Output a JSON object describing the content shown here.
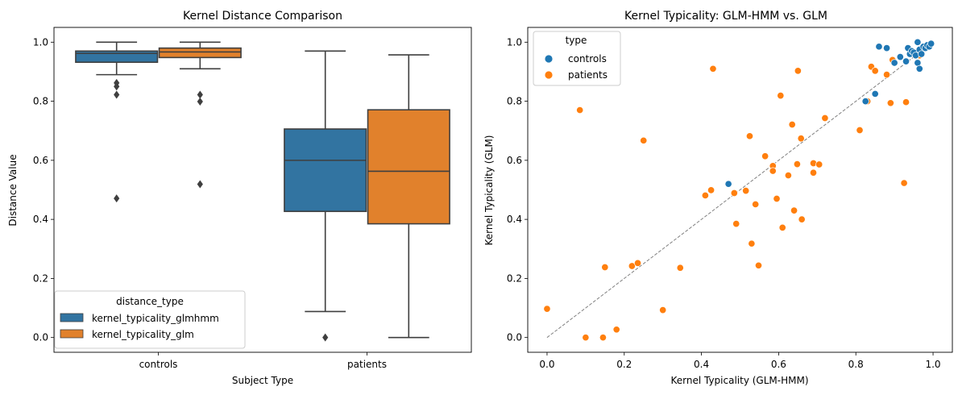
{
  "chart_data": [
    {
      "type": "box",
      "title": "Kernel Distance Comparison",
      "xlabel": "Subject Type",
      "ylabel": "Distance Value",
      "ylim": [
        -0.05,
        1.05
      ],
      "yticks": [
        "0.0",
        "0.2",
        "0.4",
        "0.6",
        "0.8",
        "1.0"
      ],
      "categories": [
        "controls",
        "patients"
      ],
      "legend": {
        "title": "distance_type",
        "position": "lower-left"
      },
      "series": [
        {
          "name": "kernel_typicality_glmhmm",
          "color": "#3274a1",
          "boxes": [
            {
              "q1": 0.932,
              "median": 0.962,
              "q3": 0.97,
              "whisker_low": 0.89,
              "whisker_high": 1.0,
              "outliers": [
                0.862,
                0.85,
                0.822,
                0.471
              ]
            },
            {
              "q1": 0.427,
              "median": 0.6,
              "q3": 0.706,
              "whisker_low": 0.088,
              "whisker_high": 0.97,
              "outliers": [
                0.0
              ]
            }
          ]
        },
        {
          "name": "kernel_typicality_glm",
          "color": "#e1812c",
          "boxes": [
            {
              "q1": 0.948,
              "median": 0.967,
              "q3": 0.98,
              "whisker_low": 0.91,
              "whisker_high": 1.0,
              "outliers": [
                0.822,
                0.799,
                0.519
              ]
            },
            {
              "q1": 0.385,
              "median": 0.563,
              "q3": 0.771,
              "whisker_low": 0.0,
              "whisker_high": 0.957,
              "outliers": []
            }
          ]
        }
      ]
    },
    {
      "type": "scatter",
      "title": "Kernel Typicality: GLM-HMM vs. GLM",
      "xlabel": "Kernel Typicality (GLM-HMM)",
      "ylabel": "Kernel Typicality (GLM)",
      "xlim": [
        -0.05,
        1.05
      ],
      "ylim": [
        -0.05,
        1.05
      ],
      "xticks": [
        "0.0",
        "0.2",
        "0.4",
        "0.6",
        "0.8",
        "1.0"
      ],
      "yticks": [
        "0.0",
        "0.2",
        "0.4",
        "0.6",
        "0.8",
        "1.0"
      ],
      "legend": {
        "title": "type",
        "position": "top-left"
      },
      "reference_line": {
        "style": "dashed",
        "color": "#808080",
        "from": [
          0,
          0
        ],
        "to": [
          1,
          1
        ]
      },
      "series": [
        {
          "name": "controls",
          "color": "#1f77b4",
          "points": [
            [
              0.47,
              0.52
            ],
            [
              0.85,
              0.825
            ],
            [
              0.825,
              0.8
            ],
            [
              0.86,
              0.985
            ],
            [
              0.88,
              0.98
            ],
            [
              0.9,
              0.93
            ],
            [
              0.915,
              0.95
            ],
            [
              0.93,
              0.935
            ],
            [
              0.935,
              0.98
            ],
            [
              0.94,
              0.96
            ],
            [
              0.945,
              0.97
            ],
            [
              0.95,
              0.965
            ],
            [
              0.955,
              0.955
            ],
            [
              0.96,
              1.0
            ],
            [
              0.96,
              0.93
            ],
            [
              0.965,
              0.91
            ],
            [
              0.965,
              0.975
            ],
            [
              0.97,
              0.96
            ],
            [
              0.975,
              0.985
            ],
            [
              0.98,
              0.98
            ],
            [
              0.985,
              0.99
            ],
            [
              0.99,
              0.985
            ],
            [
              0.995,
              0.995
            ]
          ]
        },
        {
          "name": "patients",
          "color": "#ff7f0e",
          "points": [
            [
              0.0,
              0.097
            ],
            [
              0.085,
              0.77
            ],
            [
              0.1,
              0.0
            ],
            [
              0.145,
              0.0
            ],
            [
              0.15,
              0.238
            ],
            [
              0.18,
              0.027
            ],
            [
              0.22,
              0.242
            ],
            [
              0.235,
              0.252
            ],
            [
              0.25,
              0.667
            ],
            [
              0.3,
              0.093
            ],
            [
              0.345,
              0.236
            ],
            [
              0.41,
              0.481
            ],
            [
              0.425,
              0.499
            ],
            [
              0.43,
              0.91
            ],
            [
              0.485,
              0.489
            ],
            [
              0.49,
              0.385
            ],
            [
              0.515,
              0.497
            ],
            [
              0.525,
              0.682
            ],
            [
              0.53,
              0.318
            ],
            [
              0.54,
              0.451
            ],
            [
              0.548,
              0.244
            ],
            [
              0.565,
              0.614
            ],
            [
              0.585,
              0.581
            ],
            [
              0.585,
              0.564
            ],
            [
              0.595,
              0.47
            ],
            [
              0.605,
              0.819
            ],
            [
              0.61,
              0.372
            ],
            [
              0.625,
              0.549
            ],
            [
              0.635,
              0.721
            ],
            [
              0.64,
              0.43
            ],
            [
              0.648,
              0.587
            ],
            [
              0.65,
              0.903
            ],
            [
              0.658,
              0.674
            ],
            [
              0.66,
              0.4
            ],
            [
              0.69,
              0.558
            ],
            [
              0.69,
              0.59
            ],
            [
              0.705,
              0.586
            ],
            [
              0.72,
              0.743
            ],
            [
              0.81,
              0.702
            ],
            [
              0.83,
              0.8
            ],
            [
              0.84,
              0.917
            ],
            [
              0.85,
              0.903
            ],
            [
              0.88,
              0.89
            ],
            [
              0.89,
              0.794
            ],
            [
              0.895,
              0.94
            ],
            [
              0.925,
              0.523
            ],
            [
              0.93,
              0.797
            ],
            [
              0.96,
              0.96
            ],
            [
              0.965,
              0.955
            ]
          ]
        }
      ]
    }
  ]
}
